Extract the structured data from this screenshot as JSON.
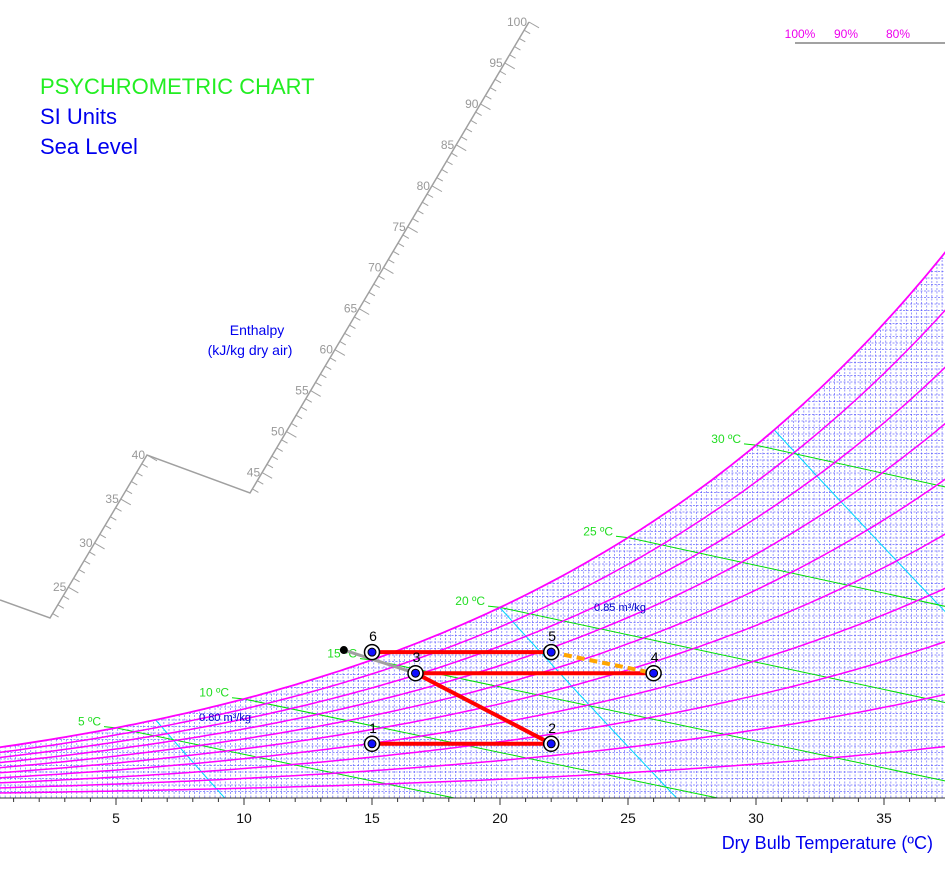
{
  "chart_data": {
    "type": "line",
    "title": "PSYCHROMETRIC CHART",
    "subtitle_lines": [
      "SI Units",
      "Sea Level"
    ],
    "xlabel": "Dry Bulb Temperature (ºC)",
    "xlim": [
      0,
      37.4
    ],
    "x_ticks": [
      5,
      10,
      15,
      20,
      25,
      30,
      35
    ],
    "humidity_ratio_range_kg_per_kg": [
      0,
      0.03
    ],
    "grid": true,
    "relative_humidity_curves": {
      "percent": [
        100,
        90,
        80,
        70,
        60,
        50,
        40,
        30,
        20,
        10
      ],
      "labels": [
        "100%",
        "90%",
        "80%"
      ]
    },
    "wet_bulb_lines": {
      "temperatures_c": [
        5,
        10,
        15,
        20,
        25,
        30
      ],
      "labels": [
        "5 ºC",
        "10 ºC",
        "15 ºC",
        "20 ºC",
        "25 ºC",
        "30 ºC"
      ]
    },
    "specific_volume_lines": {
      "values_m3_per_kg": [
        0.8,
        0.85,
        0.9
      ],
      "labels": [
        "0.80 m³/kg",
        "0.85 m³/kg"
      ]
    },
    "enthalpy_scale": {
      "title": "Enthalpy",
      "unit": "(kJ/kg dry air)",
      "ticks": [
        25,
        30,
        35,
        40,
        45,
        50,
        55,
        60,
        65,
        70,
        75,
        80,
        85,
        90,
        95,
        100
      ]
    },
    "points": [
      {
        "label": "1",
        "tdb": 15.0,
        "w": 0.00417
      },
      {
        "label": "2",
        "tdb": 22.0,
        "w": 0.00417
      },
      {
        "label": "3",
        "tdb": 16.7,
        "w": 0.0096
      },
      {
        "label": "4",
        "tdb": 26.0,
        "w": 0.0096
      },
      {
        "label": "5",
        "tdb": 22.0,
        "w": 0.01122
      },
      {
        "label": "6",
        "tdb": 15.0,
        "w": 0.01122
      }
    ],
    "extra_point": {
      "tdb": 13.9,
      "w": 0.01138
    },
    "process_lines": [
      {
        "from": "1",
        "to": "2",
        "color": "#ff0000",
        "style": "solid"
      },
      {
        "from": "2",
        "to": "3",
        "color": "#ff0000",
        "style": "solid"
      },
      {
        "from": "3",
        "to": "4",
        "color": "#ff0000",
        "style": "solid"
      },
      {
        "from": "6",
        "to": "5",
        "color": "#ff0000",
        "style": "solid"
      },
      {
        "from": "5",
        "to": "4",
        "color": "#ffa500",
        "style": "dashed"
      },
      {
        "from": "extra",
        "to": "3",
        "color": "#a0a0a0",
        "style": "solid"
      }
    ],
    "colors": {
      "rh_curves": "#ff00ff",
      "wet_bulb": "#00e000",
      "specific_volume": "#00d8ff",
      "grid": "#3b3bff",
      "title": "#22ee22",
      "subtitle": "#0000ee",
      "enthalpy_scale": "#a0a0a0",
      "process": "#ff0000",
      "dashed_process": "#ffa500"
    }
  }
}
